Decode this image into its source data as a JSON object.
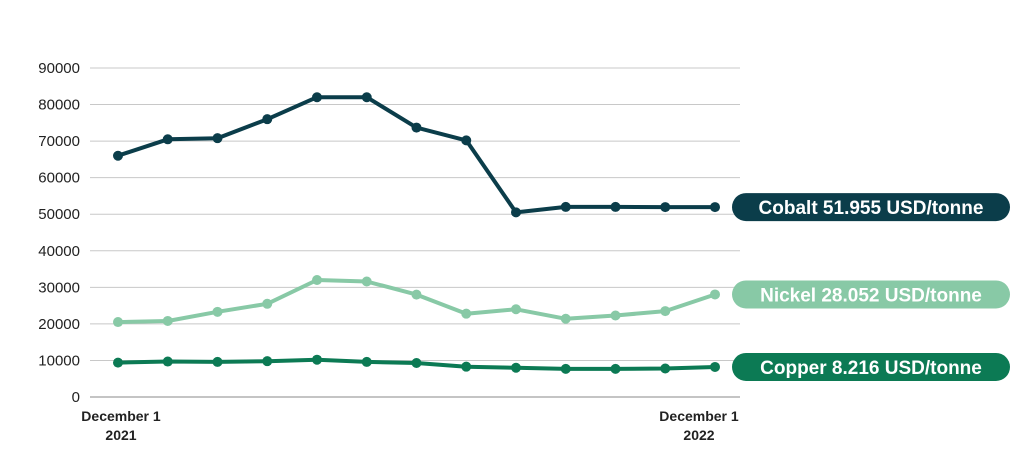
{
  "chart_data": {
    "type": "line",
    "ylim": [
      0,
      90000
    ],
    "yticks": [
      "0",
      "10000",
      "20000",
      "30000",
      "40000",
      "50000",
      "60000",
      "70000",
      "80000",
      "90000"
    ],
    "x_labels": [
      {
        "line1": "December 1",
        "line2": "2021"
      },
      {
        "line1": "December 1",
        "line2": "2022"
      }
    ],
    "grid": true,
    "series": [
      {
        "label": "Cobalt 51.955 USD/tonne",
        "color": "#0b3d4a",
        "values": [
          66000,
          70500,
          70800,
          76000,
          82000,
          82000,
          73700,
          70200,
          50500,
          52000,
          52000,
          51955,
          51955
        ]
      },
      {
        "label": "Nickel 28.052 USD/tonne",
        "color": "#88c9a6",
        "values": [
          20500,
          20800,
          23300,
          25500,
          32000,
          31600,
          28000,
          22800,
          24000,
          21400,
          22300,
          23500,
          28052
        ]
      },
      {
        "label": "Copper 8.216 USD/tonne",
        "color": "#0c7a54",
        "values": [
          9400,
          9700,
          9600,
          9800,
          10200,
          9600,
          9300,
          8300,
          8000,
          7700,
          7700,
          7800,
          8216
        ]
      }
    ]
  }
}
